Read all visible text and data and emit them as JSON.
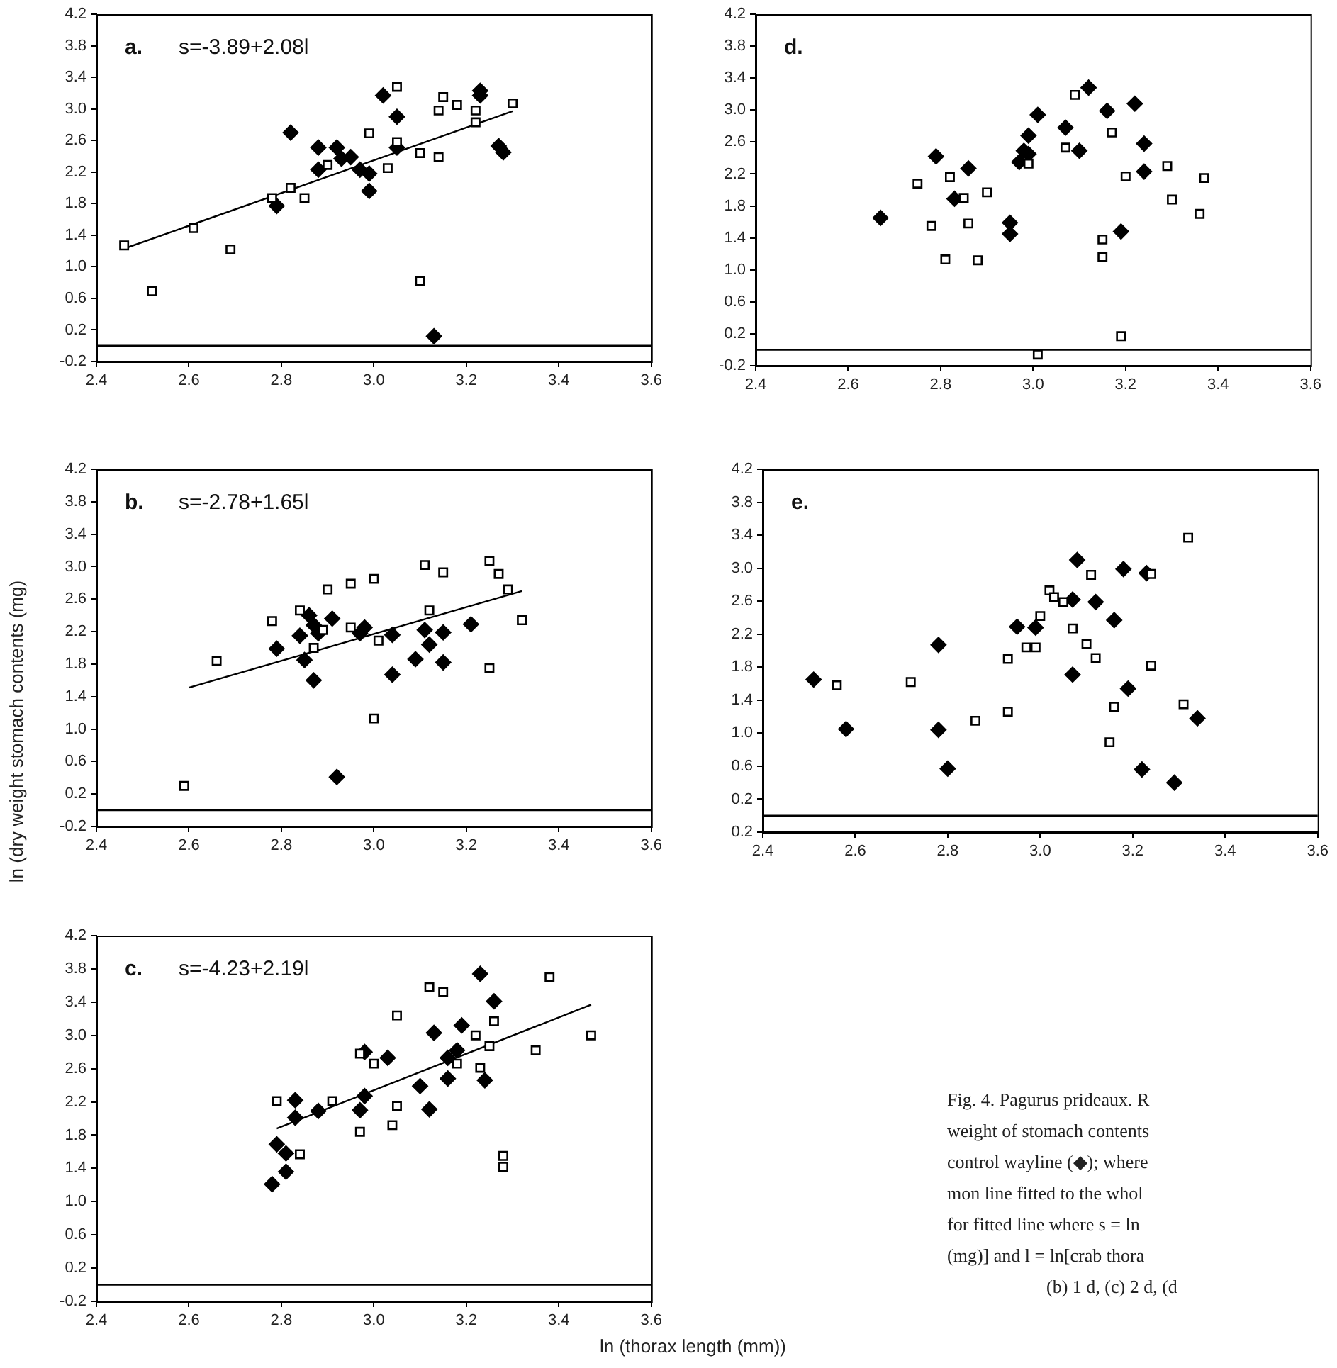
{
  "chart_data": [
    {
      "type": "scatter",
      "title": "a.",
      "annotations": [
        "s=-3.89+2.08l"
      ],
      "xlim": [
        2.4,
        3.6
      ],
      "ylim": [
        -0.2,
        4.2
      ],
      "xticks": [
        {
          "value": 2.4,
          "label": "2.4"
        },
        {
          "value": 2.6,
          "label": "2.6"
        },
        {
          "value": 2.8,
          "label": "2.8"
        },
        {
          "value": 3.0,
          "label": "3.0"
        },
        {
          "value": 3.2,
          "label": "3.2"
        },
        {
          "value": 3.4,
          "label": "3.4"
        },
        {
          "value": 3.6,
          "label": "3.6"
        }
      ],
      "yticks": [
        {
          "value": -0.2,
          "label": "-0.2"
        },
        {
          "value": 0.2,
          "label": "0.2"
        },
        {
          "value": 0.6,
          "label": "0.6"
        },
        {
          "value": 1.0,
          "label": "1.0"
        },
        {
          "value": 1.4,
          "label": "1.4"
        },
        {
          "value": 1.8,
          "label": "1.8"
        },
        {
          "value": 2.2,
          "label": "2.2"
        },
        {
          "value": 2.6,
          "label": "2.6"
        },
        {
          "value": 3.0,
          "label": "3.0"
        },
        {
          "value": 3.4,
          "label": "3.4"
        },
        {
          "value": 3.8,
          "label": "3.8"
        },
        {
          "value": 4.2,
          "label": "4.2"
        }
      ],
      "grid": false,
      "legend": false,
      "ref_lines": [
        {
          "axis": "y",
          "value": 0
        }
      ],
      "series": [
        {
          "type": "scatter",
          "marker": "square",
          "color": "#000000",
          "x": [
            2.46,
            2.52,
            2.61,
            2.69,
            2.78,
            2.82,
            2.85,
            2.9,
            2.99,
            3.03,
            3.05,
            3.05,
            3.1,
            3.1,
            3.14,
            3.14,
            3.15,
            3.18,
            3.22,
            3.22,
            3.3
          ],
          "values": [
            1.27,
            0.69,
            1.49,
            1.22,
            1.87,
            2.0,
            1.87,
            2.29,
            2.69,
            2.25,
            3.28,
            2.58,
            2.44,
            0.82,
            2.98,
            2.39,
            3.15,
            3.05,
            2.98,
            2.83,
            3.07
          ]
        },
        {
          "type": "scatter",
          "marker": "diamond",
          "color": "#000000",
          "x": [
            2.82,
            2.79,
            2.88,
            2.88,
            2.92,
            2.93,
            2.95,
            2.97,
            2.99,
            2.99,
            3.02,
            3.05,
            3.05,
            3.13,
            3.23,
            3.23,
            3.27,
            3.28
          ],
          "values": [
            2.7,
            1.77,
            2.51,
            2.23,
            2.51,
            2.37,
            2.39,
            2.23,
            2.18,
            1.96,
            3.17,
            2.9,
            2.51,
            0.12,
            3.23,
            3.17,
            2.53,
            2.45
          ]
        },
        {
          "type": "line",
          "marker": "none",
          "color": "#000000",
          "x": [
            2.46,
            3.3
          ],
          "values": [
            1.23,
            2.97
          ]
        }
      ]
    },
    {
      "type": "scatter",
      "title": "b.",
      "annotations": [
        "s=-2.78+1.65l"
      ],
      "ylabel": "ln (dry weight stomach contents (mg)",
      "xlim": [
        2.4,
        3.6
      ],
      "ylim": [
        -0.2,
        4.2
      ],
      "xticks": [
        {
          "value": 2.4,
          "label": "2.4"
        },
        {
          "value": 2.6,
          "label": "2.6"
        },
        {
          "value": 2.8,
          "label": "2.8"
        },
        {
          "value": 3.0,
          "label": "3.0"
        },
        {
          "value": 3.2,
          "label": "3.2"
        },
        {
          "value": 3.4,
          "label": "3.4"
        },
        {
          "value": 3.6,
          "label": "3.6"
        }
      ],
      "yticks": [
        {
          "value": -0.2,
          "label": "-0.2"
        },
        {
          "value": 0.2,
          "label": "0.2"
        },
        {
          "value": 0.6,
          "label": "0.6"
        },
        {
          "value": 1.0,
          "label": "1.0"
        },
        {
          "value": 1.4,
          "label": "1.4"
        },
        {
          "value": 1.8,
          "label": "1.8"
        },
        {
          "value": 2.2,
          "label": "2.2"
        },
        {
          "value": 2.6,
          "label": "2.6"
        },
        {
          "value": 3.0,
          "label": "3.0"
        },
        {
          "value": 3.4,
          "label": "3.4"
        },
        {
          "value": 3.8,
          "label": "3.8"
        },
        {
          "value": 4.2,
          "label": "4.2"
        }
      ],
      "grid": false,
      "legend": false,
      "ref_lines": [
        {
          "axis": "y",
          "value": 0
        }
      ],
      "series": [
        {
          "type": "scatter",
          "marker": "square",
          "color": "#000000",
          "x": [
            2.59,
            2.66,
            2.78,
            2.84,
            2.87,
            2.89,
            2.9,
            2.95,
            2.95,
            3.0,
            3.0,
            3.01,
            3.11,
            3.12,
            3.15,
            3.25,
            3.25,
            3.27,
            3.29,
            3.32
          ],
          "values": [
            0.3,
            1.84,
            2.33,
            2.46,
            2.0,
            2.22,
            2.72,
            2.79,
            2.25,
            2.85,
            1.13,
            2.09,
            3.02,
            2.46,
            2.93,
            1.75,
            3.07,
            2.91,
            2.72,
            2.34
          ]
        },
        {
          "type": "scatter",
          "marker": "diamond",
          "color": "#000000",
          "x": [
            2.79,
            2.84,
            2.86,
            2.87,
            2.85,
            2.87,
            2.88,
            2.91,
            2.92,
            2.97,
            2.98,
            3.04,
            3.04,
            3.09,
            3.11,
            3.12,
            3.15,
            3.15,
            3.21
          ],
          "values": [
            1.99,
            2.15,
            2.4,
            2.28,
            1.85,
            1.6,
            2.18,
            2.36,
            0.41,
            2.18,
            2.25,
            2.16,
            1.67,
            1.86,
            2.22,
            2.04,
            1.82,
            2.19,
            2.29
          ]
        },
        {
          "type": "line",
          "marker": "none",
          "color": "#000000",
          "x": [
            2.6,
            3.32
          ],
          "values": [
            1.51,
            2.7
          ]
        }
      ]
    },
    {
      "type": "scatter",
      "title": "c.",
      "annotations": [
        "s=-4.23+2.19l"
      ],
      "xlabel": "ln (thorax length (mm))",
      "xlim": [
        2.4,
        3.6
      ],
      "ylim": [
        -0.2,
        4.2
      ],
      "xticks": [
        {
          "value": 2.4,
          "label": "2.4"
        },
        {
          "value": 2.6,
          "label": "2.6"
        },
        {
          "value": 2.8,
          "label": "2.8"
        },
        {
          "value": 3.0,
          "label": "3.0"
        },
        {
          "value": 3.2,
          "label": "3.2"
        },
        {
          "value": 3.4,
          "label": "3.4"
        },
        {
          "value": 3.6,
          "label": "3.6"
        }
      ],
      "yticks": [
        {
          "value": -0.2,
          "label": "-0.2"
        },
        {
          "value": 0.2,
          "label": "0.2"
        },
        {
          "value": 0.6,
          "label": "0.6"
        },
        {
          "value": 1.0,
          "label": "1.0"
        },
        {
          "value": 1.4,
          "label": "1.4"
        },
        {
          "value": 1.8,
          "label": "1.8"
        },
        {
          "value": 2.2,
          "label": "2.2"
        },
        {
          "value": 2.6,
          "label": "2.6"
        },
        {
          "value": 3.0,
          "label": "3.0"
        },
        {
          "value": 3.4,
          "label": "3.4"
        },
        {
          "value": 3.8,
          "label": "3.8"
        },
        {
          "value": 4.2,
          "label": "4.2"
        }
      ],
      "grid": false,
      "legend": false,
      "ref_lines": [
        {
          "axis": "y",
          "value": 0
        }
      ],
      "series": [
        {
          "type": "scatter",
          "marker": "square",
          "color": "#000000",
          "x": [
            2.79,
            2.84,
            2.91,
            2.97,
            2.97,
            3.0,
            3.05,
            3.05,
            3.04,
            3.12,
            3.15,
            3.18,
            3.22,
            3.23,
            3.25,
            3.26,
            3.28,
            3.28,
            3.35,
            3.38,
            3.47
          ],
          "values": [
            2.21,
            1.57,
            2.21,
            2.78,
            1.84,
            2.66,
            3.24,
            2.15,
            1.92,
            3.58,
            3.52,
            2.66,
            3.0,
            2.61,
            2.87,
            3.17,
            1.55,
            1.42,
            2.82,
            3.7,
            3.0
          ]
        },
        {
          "type": "scatter",
          "marker": "diamond",
          "color": "#000000",
          "x": [
            2.78,
            2.79,
            2.81,
            2.81,
            2.83,
            2.83,
            2.88,
            2.97,
            2.98,
            2.98,
            3.03,
            3.1,
            3.12,
            3.13,
            3.16,
            3.16,
            3.18,
            3.19,
            3.23,
            3.24,
            3.26
          ],
          "values": [
            1.21,
            1.69,
            1.58,
            1.36,
            2.22,
            2.01,
            2.09,
            2.1,
            2.8,
            2.27,
            2.73,
            2.39,
            2.11,
            3.03,
            2.73,
            2.48,
            2.82,
            3.12,
            3.74,
            2.46,
            3.41
          ]
        },
        {
          "type": "line",
          "marker": "none",
          "color": "#000000",
          "x": [
            2.79,
            3.47
          ],
          "values": [
            1.88,
            3.37
          ]
        }
      ]
    },
    {
      "type": "scatter",
      "title": "d.",
      "xlim": [
        2.4,
        3.6
      ],
      "ylim": [
        -0.2,
        4.2
      ],
      "xticks": [
        {
          "value": 2.4,
          "label": "2.4"
        },
        {
          "value": 2.6,
          "label": "2.6"
        },
        {
          "value": 2.8,
          "label": "2.8"
        },
        {
          "value": 3.0,
          "label": "3.0"
        },
        {
          "value": 3.2,
          "label": "3.2"
        },
        {
          "value": 3.4,
          "label": "3.4"
        },
        {
          "value": 3.6,
          "label": "3.6"
        }
      ],
      "yticks": [
        {
          "value": -0.2,
          "label": "-0.2"
        },
        {
          "value": 0.2,
          "label": "0.2"
        },
        {
          "value": 0.6,
          "label": "0.6"
        },
        {
          "value": 1.0,
          "label": "1.0"
        },
        {
          "value": 1.4,
          "label": "1.4"
        },
        {
          "value": 1.8,
          "label": "1.8"
        },
        {
          "value": 2.2,
          "label": "2.2"
        },
        {
          "value": 2.6,
          "label": "2.6"
        },
        {
          "value": 3.0,
          "label": "3.0"
        },
        {
          "value": 3.4,
          "label": "3.4"
        },
        {
          "value": 3.8,
          "label": "3.8"
        },
        {
          "value": 4.2,
          "label": "4.2"
        }
      ],
      "grid": false,
      "legend": false,
      "ref_lines": [
        {
          "axis": "y",
          "value": 0
        }
      ],
      "series": [
        {
          "type": "scatter",
          "marker": "square",
          "color": "#000000",
          "x": [
            2.75,
            2.78,
            2.81,
            2.82,
            2.85,
            2.86,
            2.88,
            2.9,
            2.99,
            3.01,
            3.07,
            3.09,
            3.15,
            3.15,
            3.17,
            3.19,
            3.2,
            3.29,
            3.3,
            3.36,
            3.37
          ],
          "values": [
            2.08,
            1.55,
            1.13,
            2.16,
            1.9,
            1.58,
            1.12,
            1.97,
            2.33,
            -0.06,
            2.53,
            3.19,
            1.38,
            1.16,
            2.72,
            0.17,
            2.17,
            2.3,
            1.88,
            1.7,
            2.15
          ]
        },
        {
          "type": "scatter",
          "marker": "diamond",
          "color": "#000000",
          "x": [
            2.67,
            2.79,
            2.83,
            2.86,
            2.95,
            2.95,
            2.97,
            2.98,
            2.99,
            2.99,
            3.01,
            3.07,
            3.1,
            3.12,
            3.16,
            3.19,
            3.22,
            3.24,
            3.24
          ],
          "values": [
            1.65,
            2.42,
            1.89,
            2.27,
            1.59,
            1.45,
            2.35,
            2.49,
            2.68,
            2.45,
            2.94,
            2.78,
            2.49,
            3.28,
            2.99,
            1.48,
            3.08,
            2.58,
            2.23
          ]
        }
      ]
    },
    {
      "type": "scatter",
      "title": "e.",
      "xlim": [
        2.4,
        3.6
      ],
      "ylim": [
        -0.2,
        4.2
      ],
      "xticks": [
        {
          "value": 2.4,
          "label": "2.4"
        },
        {
          "value": 2.6,
          "label": "2.6"
        },
        {
          "value": 2.8,
          "label": "2.8"
        },
        {
          "value": 3.0,
          "label": "3.0"
        },
        {
          "value": 3.2,
          "label": "3.2"
        },
        {
          "value": 3.4,
          "label": "3.4"
        },
        {
          "value": 3.6,
          "label": "3.6"
        }
      ],
      "yticks": [
        {
          "value": -0.2,
          "label": "0.2"
        },
        {
          "value": 0.2,
          "label": "0.2"
        },
        {
          "value": 0.6,
          "label": "0.6"
        },
        {
          "value": 1.0,
          "label": "1.0"
        },
        {
          "value": 1.4,
          "label": "1.4"
        },
        {
          "value": 1.8,
          "label": "1.8"
        },
        {
          "value": 2.2,
          "label": "2.2"
        },
        {
          "value": 2.6,
          "label": "2.6"
        },
        {
          "value": 3.0,
          "label": "3.0"
        },
        {
          "value": 3.4,
          "label": "3.4"
        },
        {
          "value": 3.8,
          "label": "3.8"
        },
        {
          "value": 4.2,
          "label": "4.2"
        }
      ],
      "grid": false,
      "legend": false,
      "ref_lines": [
        {
          "axis": "y",
          "value": 0
        }
      ],
      "series": [
        {
          "type": "scatter",
          "marker": "square",
          "color": "#000000",
          "x": [
            2.56,
            2.72,
            2.86,
            2.93,
            2.93,
            2.97,
            2.99,
            3.0,
            3.02,
            3.03,
            3.05,
            3.07,
            3.1,
            3.11,
            3.12,
            3.15,
            3.16,
            3.24,
            3.24,
            3.31,
            3.32
          ],
          "values": [
            1.58,
            1.62,
            1.15,
            1.26,
            1.9,
            2.04,
            2.04,
            2.42,
            2.73,
            2.65,
            2.59,
            2.27,
            2.08,
            2.92,
            1.91,
            0.89,
            1.32,
            1.82,
            2.93,
            1.35,
            3.37
          ]
        },
        {
          "type": "scatter",
          "marker": "diamond",
          "color": "#000000",
          "x": [
            2.51,
            2.58,
            2.78,
            2.78,
            2.8,
            2.95,
            2.99,
            3.07,
            3.07,
            3.08,
            3.12,
            3.16,
            3.18,
            3.19,
            3.22,
            3.23,
            3.29,
            3.34
          ],
          "values": [
            1.65,
            1.05,
            2.07,
            1.04,
            0.57,
            2.29,
            2.28,
            2.62,
            1.71,
            3.1,
            2.59,
            2.37,
            2.99,
            1.54,
            0.56,
            2.94,
            0.4,
            1.18
          ]
        }
      ]
    },
    {
      "type": "other",
      "annotations": [
        "Fig. 4. Pagurus prideaux. R",
        "weight of stomach contents",
        "control wayline (◆); where",
        "mon line fitted to the whol",
        "for fitted line where s = ln",
        "(mg)] and l = ln[crab thora",
        "(b) 1 d, (c) 2 d, (d"
      ]
    }
  ]
}
